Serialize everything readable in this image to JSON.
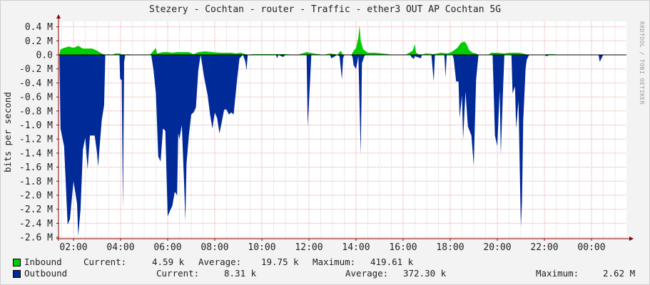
{
  "title": "Stezery - Cochtan - router - Traffic - ether3 OUT AP Cochtan 5G",
  "watermark": "RRDTOOL / TOBI OETIKER",
  "colors": {
    "inbound": "#00cc00",
    "outbound": "#002a97",
    "grid_major": "#e6a4a4",
    "grid_minor": "#d8d8d8",
    "axis": "#8a0000",
    "plot_bg": "#ffffff"
  },
  "legend": {
    "inbound": {
      "name": "Inbound",
      "current_label": "Current:",
      "current": "4.59 k",
      "average_label": "Average:",
      "average": "19.75 k",
      "maximum_label": "Maximum:",
      "maximum": "419.61 k"
    },
    "outbound": {
      "name": "Outbound",
      "current_label": "Current:",
      "current": "8.31 k",
      "average_label": "Average:",
      "average": "372.30 k",
      "maximum_label": "Maximum:",
      "maximum": "2.62 M"
    }
  },
  "chart_data": {
    "type": "area",
    "title": "Stezery - Cochtan - router - Traffic - ether3 OUT AP Cochtan 5G",
    "ylabel": "bits per second",
    "xlabel": "",
    "ylim": [
      -2.62,
      0.45
    ],
    "y_unit": "M",
    "grid": true,
    "legend_position": "bottom",
    "y_ticks": [
      0.4,
      0.2,
      0.0,
      -0.2,
      -0.4,
      -0.6,
      -0.8,
      -1.0,
      -1.2,
      -1.4,
      -1.6,
      -1.8,
      -2.0,
      -2.2,
      -2.4,
      -2.6
    ],
    "y_tick_labels": [
      "0.4 M",
      "0.2 M",
      "0.0",
      "-0.2 M",
      "-0.4 M",
      "-0.6 M",
      "-0.8 M",
      "-1.0 M",
      "-1.2 M",
      "-1.4 M",
      "-1.6 M",
      "-1.8 M",
      "-2.0 M",
      "-2.2 M",
      "-2.4 M",
      "-2.6 M"
    ],
    "x_ticks": [
      "02:00",
      "04:00",
      "06:00",
      "08:00",
      "10:00",
      "12:00",
      "14:00",
      "16:00",
      "18:00",
      "20:00",
      "22:00",
      "00:00"
    ],
    "x_tick_hours": [
      2,
      4,
      6,
      8,
      10,
      12,
      14,
      16,
      18,
      20,
      22,
      24
    ],
    "series": [
      {
        "name": "Inbound",
        "points": [
          [
            1.4,
            0
          ],
          [
            1.45,
            0.08
          ],
          [
            1.6,
            0.1
          ],
          [
            1.8,
            0.12
          ],
          [
            2.0,
            0.1
          ],
          [
            2.2,
            0.13
          ],
          [
            2.4,
            0.09
          ],
          [
            2.6,
            0.09
          ],
          [
            2.8,
            0.09
          ],
          [
            3.0,
            0.06
          ],
          [
            3.2,
            0.02
          ],
          [
            3.35,
            0
          ],
          [
            3.5,
            0.01
          ],
          [
            3.6,
            0
          ],
          [
            3.8,
            0.02
          ],
          [
            3.95,
            0.02
          ],
          [
            4.1,
            0
          ],
          [
            4.35,
            0.01
          ],
          [
            4.5,
            0
          ],
          [
            5.2,
            0
          ],
          [
            5.3,
            0.02
          ],
          [
            5.5,
            0.1
          ],
          [
            5.55,
            0.02
          ],
          [
            5.8,
            0.04
          ],
          [
            6.0,
            0.04
          ],
          [
            6.2,
            0.03
          ],
          [
            6.4,
            0.04
          ],
          [
            6.6,
            0.04
          ],
          [
            6.9,
            0.04
          ],
          [
            7.1,
            0.01
          ],
          [
            7.3,
            0.04
          ],
          [
            7.6,
            0.05
          ],
          [
            7.9,
            0.04
          ],
          [
            8.2,
            0.03
          ],
          [
            8.5,
            0.03
          ],
          [
            8.7,
            0.03
          ],
          [
            8.9,
            0.02
          ],
          [
            9.1,
            0.03
          ],
          [
            9.3,
            0.01
          ],
          [
            9.4,
            0
          ],
          [
            9.6,
            0.01
          ],
          [
            10.5,
            0.01
          ],
          [
            11.0,
            0.01
          ],
          [
            11.5,
            0
          ],
          [
            11.9,
            0.04
          ],
          [
            12.2,
            0.02
          ],
          [
            12.4,
            0.01
          ],
          [
            12.6,
            0
          ],
          [
            12.9,
            0.02
          ],
          [
            13.1,
            0.01
          ],
          [
            13.2,
            0
          ],
          [
            13.35,
            0.06
          ],
          [
            13.45,
            0
          ],
          [
            13.8,
            0
          ],
          [
            13.9,
            0.06
          ],
          [
            14.0,
            0.1
          ],
          [
            14.1,
            0.25
          ],
          [
            14.15,
            0.42
          ],
          [
            14.2,
            0.2
          ],
          [
            14.3,
            0.08
          ],
          [
            14.5,
            0.03
          ],
          [
            14.8,
            0.03
          ],
          [
            15.1,
            0.02
          ],
          [
            15.4,
            0.01
          ],
          [
            15.5,
            0
          ],
          [
            16.1,
            0
          ],
          [
            16.2,
            0.02
          ],
          [
            16.4,
            0.06
          ],
          [
            16.5,
            0.15
          ],
          [
            16.55,
            0.03
          ],
          [
            16.7,
            0
          ],
          [
            17.0,
            0.02
          ],
          [
            17.3,
            0.01
          ],
          [
            17.6,
            0.03
          ],
          [
            17.9,
            0.02
          ],
          [
            18.1,
            0.05
          ],
          [
            18.3,
            0.1
          ],
          [
            18.45,
            0.17
          ],
          [
            18.6,
            0.19
          ],
          [
            18.7,
            0.15
          ],
          [
            18.8,
            0.07
          ],
          [
            18.95,
            0.03
          ],
          [
            19.1,
            0.02
          ],
          [
            19.2,
            0
          ],
          [
            19.6,
            0
          ],
          [
            19.75,
            0.03
          ],
          [
            20.0,
            0.03
          ],
          [
            20.3,
            0.02
          ],
          [
            20.5,
            0.03
          ],
          [
            20.7,
            0.03
          ],
          [
            20.9,
            0.03
          ],
          [
            21.1,
            0.02
          ],
          [
            21.3,
            0
          ],
          [
            22.0,
            0
          ],
          [
            22.1,
            0.01
          ],
          [
            22.4,
            0.01
          ],
          [
            22.6,
            0
          ],
          [
            24.4,
            0
          ],
          [
            25.1,
            0
          ]
        ]
      },
      {
        "name": "Outbound",
        "points": [
          [
            1.4,
            0
          ],
          [
            1.45,
            -1.05
          ],
          [
            1.6,
            -1.3
          ],
          [
            1.75,
            -2.42
          ],
          [
            1.85,
            -2.34
          ],
          [
            2.0,
            -1.8
          ],
          [
            2.15,
            -2.12
          ],
          [
            2.2,
            -2.58
          ],
          [
            2.3,
            -2.2
          ],
          [
            2.4,
            -1.35
          ],
          [
            2.5,
            -1.18
          ],
          [
            2.6,
            -1.63
          ],
          [
            2.7,
            -1.15
          ],
          [
            2.8,
            -1.15
          ],
          [
            2.9,
            -1.15
          ],
          [
            3.0,
            -1.4
          ],
          [
            3.05,
            -1.59
          ],
          [
            3.1,
            -1.35
          ],
          [
            3.2,
            -0.93
          ],
          [
            3.3,
            -0.72
          ],
          [
            3.35,
            0
          ],
          [
            3.95,
            0
          ],
          [
            3.98,
            -0.34
          ],
          [
            4.05,
            -0.36
          ],
          [
            4.1,
            -2.2
          ],
          [
            4.15,
            -0.1
          ],
          [
            4.2,
            0
          ],
          [
            5.3,
            0
          ],
          [
            5.4,
            -0.22
          ],
          [
            5.5,
            -0.55
          ],
          [
            5.6,
            -1.45
          ],
          [
            5.7,
            -1.52
          ],
          [
            5.8,
            -1.05
          ],
          [
            5.9,
            -1.08
          ],
          [
            6.0,
            -2.3
          ],
          [
            6.1,
            -2.22
          ],
          [
            6.2,
            -2.15
          ],
          [
            6.3,
            -1.95
          ],
          [
            6.4,
            -2.0
          ],
          [
            6.45,
            -1.12
          ],
          [
            6.5,
            -1.2
          ],
          [
            6.6,
            -1.0
          ],
          [
            6.7,
            -1.85
          ],
          [
            6.75,
            -2.37
          ],
          [
            6.8,
            -1.55
          ],
          [
            6.9,
            -1.15
          ],
          [
            7.0,
            -0.85
          ],
          [
            7.1,
            -0.82
          ],
          [
            7.2,
            -0.75
          ],
          [
            7.3,
            -0.22
          ],
          [
            7.4,
            0
          ],
          [
            7.55,
            -0.32
          ],
          [
            7.7,
            -0.58
          ],
          [
            7.8,
            -0.85
          ],
          [
            7.9,
            -1.05
          ],
          [
            8.0,
            -0.82
          ],
          [
            8.1,
            -0.9
          ],
          [
            8.2,
            -1.12
          ],
          [
            8.3,
            -0.95
          ],
          [
            8.4,
            -0.78
          ],
          [
            8.5,
            -0.78
          ],
          [
            8.6,
            -0.85
          ],
          [
            8.7,
            -0.82
          ],
          [
            8.8,
            -0.85
          ],
          [
            8.95,
            -0.35
          ],
          [
            9.05,
            -0.05
          ],
          [
            9.2,
            0
          ],
          [
            9.3,
            -0.1
          ],
          [
            9.35,
            -0.22
          ],
          [
            9.4,
            0
          ],
          [
            10.6,
            0
          ],
          [
            10.65,
            -0.05
          ],
          [
            10.7,
            0
          ],
          [
            10.9,
            -0.03
          ],
          [
            11.0,
            0
          ],
          [
            11.9,
            0
          ],
          [
            11.95,
            -1.02
          ],
          [
            12.05,
            -0.35
          ],
          [
            12.1,
            0
          ],
          [
            12.9,
            0
          ],
          [
            12.95,
            -0.05
          ],
          [
            13.05,
            -0.03
          ],
          [
            13.2,
            0
          ],
          [
            13.3,
            -0.02
          ],
          [
            13.4,
            -0.35
          ],
          [
            13.45,
            -0.05
          ],
          [
            13.5,
            0
          ],
          [
            13.8,
            0
          ],
          [
            13.85,
            -0.03
          ],
          [
            13.9,
            -0.15
          ],
          [
            14.0,
            -0.2
          ],
          [
            14.1,
            -0.02
          ],
          [
            14.2,
            -1.42
          ],
          [
            14.25,
            -0.12
          ],
          [
            14.35,
            -0.02
          ],
          [
            14.4,
            0
          ],
          [
            16.3,
            0
          ],
          [
            16.35,
            -0.03
          ],
          [
            16.45,
            -0.06
          ],
          [
            16.5,
            -0.02
          ],
          [
            16.6,
            -0.03
          ],
          [
            16.75,
            -0.05
          ],
          [
            16.8,
            0
          ],
          [
            17.2,
            0
          ],
          [
            17.3,
            -0.38
          ],
          [
            17.35,
            0
          ],
          [
            17.75,
            0
          ],
          [
            17.8,
            -0.32
          ],
          [
            17.85,
            0
          ],
          [
            18.1,
            0
          ],
          [
            18.15,
            -0.06
          ],
          [
            18.25,
            -0.38
          ],
          [
            18.35,
            -0.38
          ],
          [
            18.4,
            -0.9
          ],
          [
            18.5,
            -0.58
          ],
          [
            18.55,
            -1.2
          ],
          [
            18.65,
            -0.52
          ],
          [
            18.75,
            -1.02
          ],
          [
            18.9,
            -1.15
          ],
          [
            19.0,
            -1.58
          ],
          [
            19.1,
            -0.35
          ],
          [
            19.2,
            0
          ],
          [
            19.8,
            0
          ],
          [
            19.9,
            -1.15
          ],
          [
            20.0,
            -1.3
          ],
          [
            20.1,
            -0.5
          ],
          [
            20.15,
            -1.42
          ],
          [
            20.25,
            -0.42
          ],
          [
            20.3,
            0
          ],
          [
            20.6,
            0
          ],
          [
            20.65,
            -0.55
          ],
          [
            20.75,
            -0.45
          ],
          [
            20.8,
            -1.05
          ],
          [
            20.9,
            -0.65
          ],
          [
            21.0,
            -2.45
          ],
          [
            21.05,
            -2.1
          ],
          [
            21.1,
            -0.95
          ],
          [
            21.2,
            -0.2
          ],
          [
            21.25,
            -0.07
          ],
          [
            21.35,
            0
          ],
          [
            22.0,
            0
          ],
          [
            22.1,
            -0.02
          ],
          [
            22.2,
            0
          ],
          [
            24.3,
            0
          ],
          [
            24.35,
            -0.1
          ],
          [
            24.45,
            -0.03
          ],
          [
            24.5,
            0
          ]
        ]
      }
    ]
  }
}
